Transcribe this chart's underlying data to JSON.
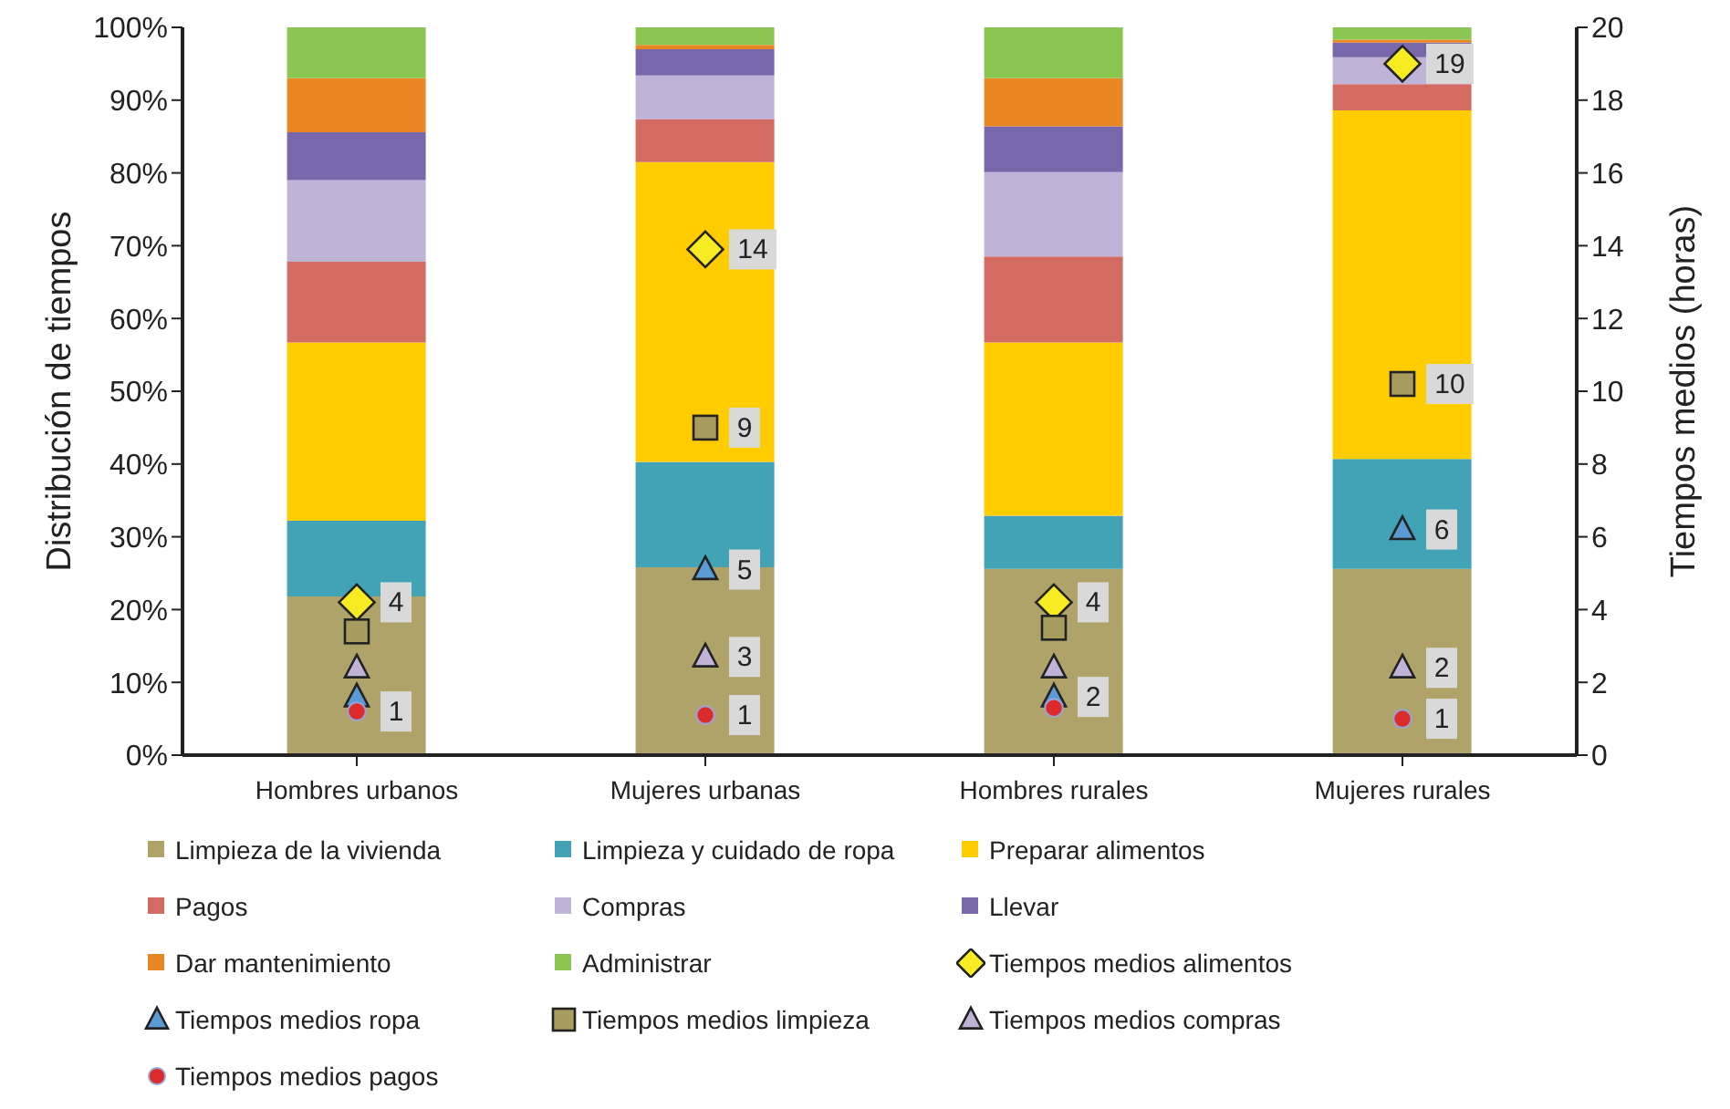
{
  "chart_data": {
    "type": "bar",
    "stacked": true,
    "categories": [
      "Hombres urbanos",
      "Mujeres urbanas",
      "Hombres rurales",
      "Mujeres rurales"
    ],
    "ylabel": "Distribución de tiempos",
    "y2label": "Tiempos medios (horas)",
    "ylim": [
      0,
      100
    ],
    "yticks": [
      {
        "value": 0,
        "label": "0%"
      },
      {
        "value": 10,
        "label": "10%"
      },
      {
        "value": 20,
        "label": "20%"
      },
      {
        "value": 30,
        "label": "30%"
      },
      {
        "value": 40,
        "label": "40%"
      },
      {
        "value": 50,
        "label": "50%"
      },
      {
        "value": 60,
        "label": "60%"
      },
      {
        "value": 70,
        "label": "70%"
      },
      {
        "value": 80,
        "label": "80%"
      },
      {
        "value": 90,
        "label": "90%"
      },
      {
        "value": 100,
        "label": "100%"
      }
    ],
    "y2lim": [
      0,
      20
    ],
    "y2ticks": [
      0,
      2,
      4,
      6,
      8,
      10,
      12,
      14,
      16,
      18,
      20
    ],
    "legend": "bottom",
    "grid": false,
    "series": [
      {
        "name": "Limpieza de la vivienda",
        "color": "#b0a36a",
        "values": [
          21.8,
          25.8,
          25.6,
          25.6
        ]
      },
      {
        "name": "Limpieza y cuidado de ropa",
        "color": "#42a2b6",
        "values": [
          10.4,
          14.5,
          7.3,
          15.1
        ]
      },
      {
        "name": "Preparar alimentos",
        "color": "#ffcc00",
        "values": [
          24.5,
          41.2,
          23.8,
          47.9
        ]
      },
      {
        "name": "Pagos",
        "color": "#d46b62",
        "values": [
          11.1,
          5.9,
          11.8,
          3.6
        ]
      },
      {
        "name": "Compras",
        "color": "#bfb3d7",
        "values": [
          11.2,
          6.0,
          11.6,
          3.7
        ]
      },
      {
        "name": "Llevar",
        "color": "#7867ab",
        "values": [
          6.6,
          3.6,
          6.3,
          2.0
        ]
      },
      {
        "name": "Dar mantenimiento",
        "color": "#e98725",
        "values": [
          7.4,
          0.6,
          6.6,
          0.4
        ]
      },
      {
        "name": "Administrar",
        "color": "#8bc652",
        "values": [
          7.0,
          2.4,
          7.0,
          1.7
        ]
      },
      {
        "name": "Tiempos medios alimentos",
        "type": "scatter",
        "axis": "y2",
        "marker": "diamond",
        "color": "#f7ec22",
        "values": [
          4.2,
          13.9,
          4.2,
          19.0
        ],
        "value_labels": [
          "4",
          "14",
          "4",
          "19"
        ]
      },
      {
        "name": "Tiempos medios ropa",
        "type": "scatter",
        "axis": "y2",
        "marker": "triangle",
        "color": "#5b9bd5",
        "values": [
          1.6,
          5.1,
          1.6,
          6.2
        ],
        "value_labels": [
          null,
          "5",
          "2",
          "6"
        ]
      },
      {
        "name": "Tiempos medios limpieza",
        "type": "scatter",
        "axis": "y2",
        "marker": "square",
        "color": "#a89c5e",
        "values": [
          3.4,
          9.0,
          3.5,
          10.2
        ],
        "value_labels": [
          null,
          "9",
          null,
          "10"
        ]
      },
      {
        "name": "Tiempos medios compras",
        "type": "scatter",
        "axis": "y2",
        "marker": "triangle",
        "color": "#bfb3d7",
        "values": [
          2.4,
          2.7,
          2.4,
          2.4
        ],
        "value_labels": [
          null,
          "3",
          null,
          "2"
        ]
      },
      {
        "name": "Tiempos medios pagos",
        "type": "scatter",
        "axis": "y2",
        "marker": "circle",
        "color": "#dd2a2a",
        "values": [
          1.2,
          1.1,
          1.3,
          1.0
        ],
        "value_labels": [
          "1",
          "1",
          null,
          "1"
        ]
      }
    ]
  }
}
